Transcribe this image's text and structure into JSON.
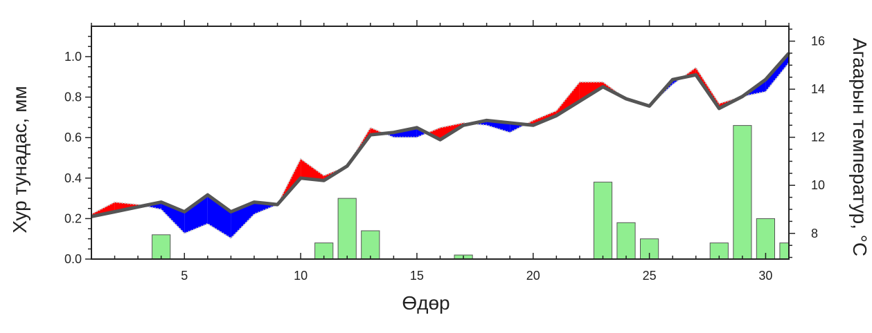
{
  "chart_data": {
    "type": "bar",
    "xlabel": "Өдөр",
    "ylabel": "Хур тунадас, мм",
    "y2label": "Агаарын температур, °С",
    "xlim": [
      1,
      31
    ],
    "ylim": [
      0,
      1.15
    ],
    "y2lim": [
      6.93,
      16.62
    ],
    "x_ticks": [
      5,
      10,
      15,
      20,
      25,
      30
    ],
    "y_ticks": [
      0.0,
      0.2,
      0.4,
      0.6,
      0.8,
      1.0
    ],
    "y_tick_labels": [
      "0.0",
      "0.2",
      "0.4",
      "0.6",
      "0.8",
      "1.0"
    ],
    "y2_ticks": [
      8,
      10,
      12,
      14,
      16
    ],
    "y2_tick_labels": [
      "8",
      "10",
      "12",
      "14",
      "16"
    ],
    "grid": false,
    "colors": {
      "bars": "#90ee90",
      "bar_edge": "#555555",
      "above_fill": "#ff0000",
      "below_fill": "#0000ff",
      "base_line": "#555555"
    },
    "series": [
      {
        "type": "bar",
        "axis": "left",
        "x": [
          4,
          11,
          12,
          13,
          17,
          23,
          24,
          25,
          28,
          29,
          30,
          31
        ],
        "values": [
          0.12,
          0.08,
          0.3,
          0.14,
          0.02,
          0.38,
          0.18,
          0.1,
          0.08,
          0.66,
          0.2,
          0.08
        ]
      },
      {
        "type": "line",
        "axis": "right",
        "x": [
          1,
          2,
          3,
          4,
          5,
          6,
          7,
          8,
          9,
          10,
          11,
          12,
          13,
          14,
          15,
          16,
          17,
          18,
          19,
          20,
          21,
          22,
          23,
          24,
          25,
          26,
          27,
          28,
          29,
          30,
          31
        ],
        "values": [
          8.7,
          8.9,
          9.1,
          9.3,
          8.9,
          9.6,
          8.9,
          9.3,
          9.2,
          10.3,
          10.2,
          10.8,
          12.1,
          12.2,
          12.4,
          11.9,
          12.5,
          12.7,
          12.6,
          12.5,
          12.9,
          13.5,
          14.1,
          13.6,
          13.3,
          14.4,
          14.6,
          13.2,
          13.7,
          14.4,
          15.5
        ]
      },
      {
        "type": "line",
        "axis": "right",
        "x": [
          1,
          2,
          3,
          4,
          5,
          6,
          7,
          8,
          9,
          10,
          11,
          12,
          13,
          14,
          15,
          16,
          17,
          18,
          19,
          20,
          21,
          22,
          23,
          24,
          25,
          26,
          27,
          28,
          29,
          30,
          31
        ],
        "values": [
          8.8,
          9.3,
          9.2,
          9.0,
          8.0,
          8.4,
          7.8,
          8.8,
          9.2,
          11.1,
          10.4,
          10.8,
          12.4,
          12.0,
          12.0,
          12.4,
          12.6,
          12.5,
          12.2,
          12.7,
          13.1,
          14.3,
          14.3,
          13.6,
          13.3,
          14.2,
          14.9,
          13.4,
          13.7,
          13.9,
          15.1
        ]
      }
    ]
  }
}
